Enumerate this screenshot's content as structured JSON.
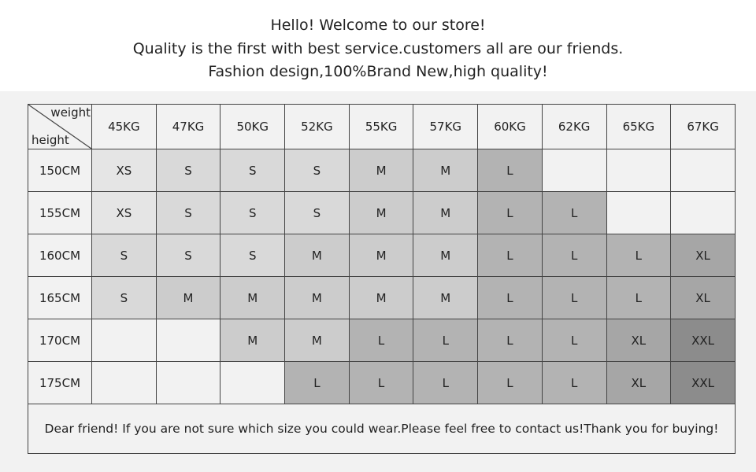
{
  "header": {
    "lines": [
      "Hello! Welcome to our store!",
      "Quality is the first with best service.customers all are our friends.",
      "Fashion design,100%Brand New,high quality!"
    ]
  },
  "table": {
    "corner_top": "weight",
    "corner_bottom": "height",
    "weights": [
      "45KG",
      "47KG",
      "50KG",
      "52KG",
      "55KG",
      "57KG",
      "60KG",
      "62KG",
      "65KG",
      "67KG"
    ],
    "rows": [
      {
        "height": "150CM",
        "sizes": [
          "XS",
          "S",
          "S",
          "S",
          "M",
          "M",
          "L",
          "",
          "",
          ""
        ]
      },
      {
        "height": "155CM",
        "sizes": [
          "XS",
          "S",
          "S",
          "S",
          "M",
          "M",
          "L",
          "L",
          "",
          ""
        ]
      },
      {
        "height": "160CM",
        "sizes": [
          "S",
          "S",
          "S",
          "M",
          "M",
          "M",
          "L",
          "L",
          "L",
          "XL"
        ]
      },
      {
        "height": "165CM",
        "sizes": [
          "S",
          "M",
          "M",
          "M",
          "M",
          "M",
          "L",
          "L",
          "L",
          "XL"
        ]
      },
      {
        "height": "170CM",
        "sizes": [
          "",
          "",
          "M",
          "M",
          "L",
          "L",
          "L",
          "L",
          "XL",
          "XXL"
        ]
      },
      {
        "height": "175CM",
        "sizes": [
          "",
          "",
          "",
          "L",
          "L",
          "L",
          "L",
          "L",
          "XL",
          "XXL"
        ]
      }
    ],
    "size_colors": {
      "XS": "#e5e5e5",
      "S": "#d9d9d9",
      "M": "#cccccc",
      "L": "#b3b3b3",
      "XL": "#a6a6a6",
      "XXL": "#8c8c8c",
      "": "#f2f2f2"
    },
    "footer": "Dear friend! If you are not sure which size you could wear.Please feel free to contact us!Thank you for buying!"
  }
}
